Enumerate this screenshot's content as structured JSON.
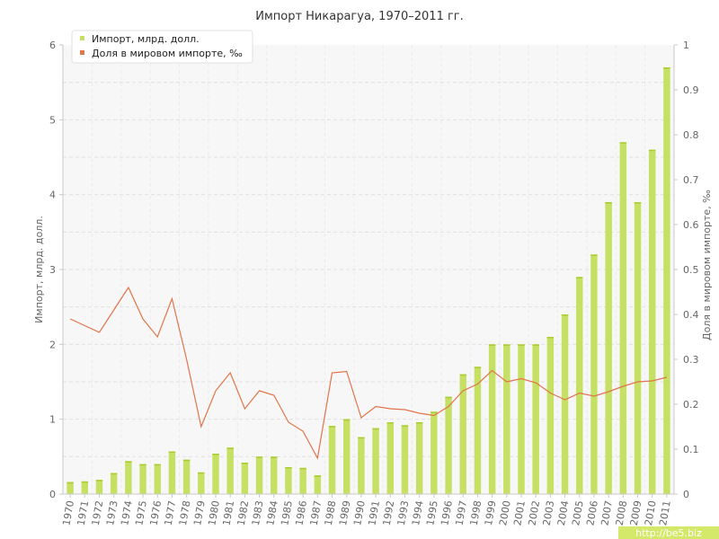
{
  "chart_data": {
    "type": "bar",
    "title": "Импорт Никарагуа, 1970–2011 гг.",
    "ylabel": "Импорт, млрд. долл.",
    "y2label": "Доля в мировом импорте, ‰",
    "ylim": [
      0,
      6
    ],
    "y2lim": [
      0,
      1
    ],
    "yticks": [
      "0",
      "1",
      "2",
      "3",
      "4",
      "5",
      "6"
    ],
    "y2ticks": [
      "0",
      "0.1",
      "0.2",
      "0.3",
      "0.4",
      "0.5",
      "0.6",
      "0.7",
      "0.8",
      "0.9",
      "1"
    ],
    "grid": true,
    "legend_position": "top-left",
    "categories": [
      "1970",
      "1971",
      "1972",
      "1973",
      "1974",
      "1975",
      "1976",
      "1977",
      "1978",
      "1979",
      "1980",
      "1981",
      "1982",
      "1983",
      "1984",
      "1985",
      "1986",
      "1987",
      "1988",
      "1989",
      "1990",
      "1991",
      "1992",
      "1993",
      "1994",
      "1995",
      "1996",
      "1997",
      "1998",
      "1999",
      "2000",
      "2001",
      "2002",
      "2003",
      "2004",
      "2005",
      "2006",
      "2007",
      "2008",
      "2009",
      "2010",
      "2011"
    ],
    "series": [
      {
        "name": "Импорт, млрд. долл.",
        "type": "bar",
        "axis": "left",
        "color": "#c5e063",
        "values": [
          0.16,
          0.17,
          0.19,
          0.28,
          0.44,
          0.4,
          0.4,
          0.57,
          0.46,
          0.29,
          0.54,
          0.62,
          0.42,
          0.5,
          0.5,
          0.36,
          0.35,
          0.25,
          0.91,
          1.0,
          0.76,
          0.88,
          0.96,
          0.92,
          0.96,
          1.1,
          1.3,
          1.6,
          1.7,
          2.0,
          2.0,
          2.0,
          2.0,
          2.1,
          2.4,
          2.9,
          3.2,
          3.9,
          4.7,
          3.9,
          4.6,
          5.7
        ]
      },
      {
        "name": "Доля в мировом импорте, ‰",
        "type": "line",
        "axis": "right",
        "color": "#e0744a",
        "values": [
          0.39,
          0.375,
          0.36,
          0.41,
          0.46,
          0.39,
          0.35,
          0.435,
          0.3,
          0.15,
          0.23,
          0.27,
          0.19,
          0.23,
          0.22,
          0.16,
          0.14,
          0.08,
          0.27,
          0.273,
          0.17,
          0.195,
          0.19,
          0.188,
          0.18,
          0.175,
          0.195,
          0.23,
          0.245,
          0.275,
          0.25,
          0.257,
          0.248,
          0.225,
          0.21,
          0.225,
          0.218,
          0.228,
          0.24,
          0.25,
          0.252,
          0.26
        ]
      }
    ]
  },
  "watermark": {
    "text": "http://be5.biz"
  },
  "colors": {
    "watermark_bg": "#d4e86a",
    "watermark_fg": "#ffffff"
  }
}
